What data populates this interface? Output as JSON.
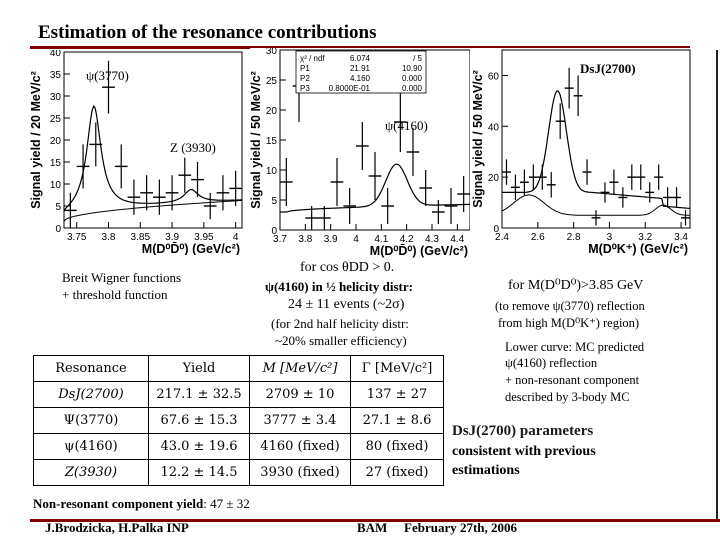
{
  "slide": {
    "title": "Estimation of the resonance contributions",
    "footer_left": "J.Brodzicka, H.Palka INP",
    "footer_center": "BAM",
    "footer_right": "February 27th, 2006"
  },
  "plot_left": {
    "ylabel": "Signal yield / 20 MeV/c²",
    "xlabel": "M(D⁰D̄⁰) (GeV/c²)",
    "psi3770_label": "ψ(3770)",
    "z3930_label": "Z (3930)",
    "yticks": [
      "0",
      "5",
      "10",
      "15",
      "20",
      "25",
      "30",
      "35",
      "40"
    ],
    "xticks": [
      "3.75",
      "3.8",
      "3.85",
      "3.9",
      "3.95",
      "4"
    ]
  },
  "plot_mid": {
    "ylabel": "Signal yield / 50 MeV/c²",
    "xlabel": "M(D⁰D̄⁰) (GeV/c²)",
    "psi4160_label": "ψ(4160)",
    "yticks": [
      "0",
      "5",
      "10",
      "15",
      "20",
      "25",
      "30"
    ],
    "xticks": [
      "3.7",
      "3.8",
      "3.9",
      "4",
      "4.1",
      "4.2",
      "4.3",
      "4.4"
    ],
    "stats_rows": [
      {
        "name": "χ² / ndf",
        "v1": "6.074",
        "v2": "/ 5"
      },
      {
        "name": "P1",
        "v1": "21.91",
        "v2": "10.90"
      },
      {
        "name": "P2",
        "v1": "4.160",
        "v2": "0.000"
      },
      {
        "name": "P3",
        "v1": "0.8000E-01",
        "v2": "0.000"
      }
    ]
  },
  "plot_right": {
    "ylabel": "Signal yield / 50 MeV/c²",
    "xlabel": "M(D⁰K⁺) (GeV/c²)",
    "dsj_label": "DsJ(2700)",
    "yticks": [
      "0",
      "20",
      "40",
      "60"
    ],
    "xticks": [
      "2.4",
      "2.6",
      "2.8",
      "3",
      "3.2",
      "3.4"
    ]
  },
  "notes": {
    "breit_wigner_1": "Breit Wigner functions",
    "breit_wigner_2": "+ threshold function",
    "for_cos": "for cos θDD > 0.",
    "psi4160_half": "ψ(4160) in ½ helicity distr:",
    "events": "24 ± 11 events (~2σ)",
    "second_half_1": "(for 2nd half helicity distr:",
    "second_half_2": "~20% smaller efficiency)",
    "for_mass": "for M(D⁰D⁰)>3.85 GeV",
    "remove_1": "(to remove ψ(3770) reflection",
    "remove_2": "from high M(D⁰K⁺) region)",
    "lower_1": "Lower curve: MC predicted",
    "lower_2": "ψ(4160) reflection",
    "lower_3": "+ non-resonant component",
    "lower_4": "described by 3-body MC",
    "dsj_params": "DsJ(2700) parameters",
    "consistent_1": "consistent with previous",
    "consistent_2": "estimations",
    "nonres_label": "Non-resonant component yield",
    "nonres_value": ": 47 ± 32"
  },
  "table": {
    "headers": [
      "Resonance",
      "Yield",
      "M [MeV/c²]",
      "Γ [MeV/c²]"
    ],
    "rows": [
      [
        "DsJ(2700)",
        "217.1 ± 32.5",
        "2709 ± 10",
        "137 ± 27"
      ],
      [
        "Ψ(3770)",
        "67.6 ± 15.3",
        "3777 ± 3.4",
        "27.1 ± 8.6"
      ],
      [
        "ψ(4160)",
        "43.0 ± 19.6",
        "4160 (fixed)",
        "80 (fixed)"
      ],
      [
        "Z(3930)",
        "12.2 ± 14.5",
        "3930 (fixed)",
        "27 (fixed)"
      ]
    ]
  },
  "chart_data": [
    {
      "type": "scatter",
      "title": "",
      "xlabel": "M(D⁰D̄⁰) (GeV/c²)",
      "ylabel": "Signal yield / 20 MeV/c²",
      "xlim": [
        3.73,
        4.01
      ],
      "ylim": [
        0,
        40
      ],
      "x": [
        3.74,
        3.76,
        3.78,
        3.8,
        3.82,
        3.84,
        3.86,
        3.88,
        3.9,
        3.92,
        3.94,
        3.96,
        3.98,
        4.0
      ],
      "y": [
        4,
        14,
        19,
        32,
        14,
        7,
        8,
        7,
        8,
        12,
        11,
        5,
        8,
        9
      ],
      "err": [
        4,
        5,
        5,
        6,
        5,
        4,
        4,
        4,
        4,
        4,
        4,
        3,
        4,
        4
      ]
    },
    {
      "type": "scatter",
      "title": "",
      "xlabel": "M(D⁰D̄⁰) (GeV/c²)",
      "ylabel": "Signal yield / 50 MeV/c²",
      "xlim": [
        3.7,
        4.45
      ],
      "ylim": [
        0,
        30
      ],
      "x": [
        3.725,
        3.775,
        3.825,
        3.875,
        3.925,
        3.975,
        4.025,
        4.075,
        4.125,
        4.175,
        4.225,
        4.275,
        4.325,
        4.375,
        4.425
      ],
      "y": [
        8,
        24,
        2,
        2,
        8,
        4,
        14,
        9,
        4,
        18,
        13,
        7,
        3,
        4,
        6
      ],
      "err": [
        4,
        6,
        2,
        2,
        4,
        3,
        4,
        4,
        3,
        5,
        4,
        3,
        2,
        3,
        3
      ]
    },
    {
      "type": "scatter",
      "title": "",
      "xlabel": "M(D⁰K⁺) (GeV/c²)",
      "ylabel": "Signal yield / 50 MeV/c²",
      "xlim": [
        2.4,
        3.45
      ],
      "ylim": [
        0,
        70
      ],
      "x": [
        2.425,
        2.475,
        2.525,
        2.575,
        2.625,
        2.675,
        2.725,
        2.775,
        2.825,
        2.875,
        2.925,
        2.975,
        3.025,
        3.075,
        3.125,
        3.175,
        3.225,
        3.275,
        3.325,
        3.375,
        3.425
      ],
      "y": [
        22,
        16,
        18,
        20,
        20,
        17,
        42,
        55,
        52,
        22,
        4,
        14,
        18,
        12,
        20,
        20,
        14,
        20,
        12,
        12,
        4
      ],
      "err": [
        5,
        5,
        5,
        5,
        5,
        5,
        7,
        8,
        8,
        5,
        3,
        4,
        5,
        4,
        5,
        5,
        4,
        5,
        4,
        4,
        3
      ]
    }
  ]
}
